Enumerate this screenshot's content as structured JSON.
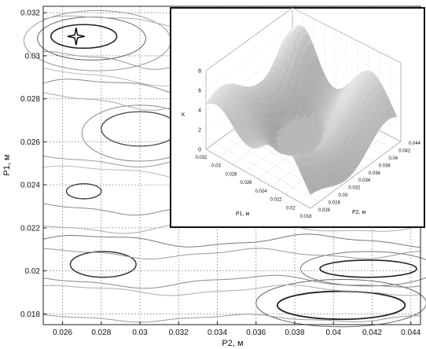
{
  "chart_data": [
    {
      "type": "contour",
      "xlabel": "P2, м",
      "ylabel": "P1, м",
      "xlim": [
        0.025,
        0.0445
      ],
      "ylim": [
        0.0175,
        0.0323
      ],
      "x_ticks": [
        "0.026",
        "0.028",
        "0.03",
        "0.032",
        "0.034",
        "0.036",
        "0.038",
        "0.04",
        "0.042",
        "0.044"
      ],
      "y_ticks": [
        "0.018",
        "0.02",
        "0.022",
        "0.024",
        "0.026",
        "0.028",
        "0.03",
        "0.032"
      ],
      "x_tick_values": [
        0.026,
        0.028,
        0.03,
        0.032,
        0.034,
        0.036,
        0.038,
        0.04,
        0.042,
        0.044
      ],
      "y_tick_values": [
        0.018,
        0.02,
        0.022,
        0.024,
        0.026,
        0.028,
        0.03,
        0.032
      ],
      "grid": true,
      "marker": {
        "shape": "four-point-star",
        "x": 0.0267,
        "y": 0.0309
      },
      "line_color": "#555555"
    },
    {
      "type": "surface3d",
      "zlabel": "К",
      "xlabel": "P1, м",
      "ylabel": "P2, м",
      "z_ticks": [
        "0",
        "2",
        "4",
        "6",
        "8"
      ],
      "p1_ticks": [
        "0.032",
        "0.03",
        "0.028",
        "0.026",
        "0.024",
        "0.022",
        "0.02",
        "0.018"
      ],
      "p2_ticks": [
        "0.026",
        "0.028",
        "0.03",
        "0.032",
        "0.034",
        "0.036",
        "0.038",
        "0.04",
        "0.042",
        "0.044"
      ],
      "grid": true,
      "colormap": "grayscale"
    }
  ]
}
